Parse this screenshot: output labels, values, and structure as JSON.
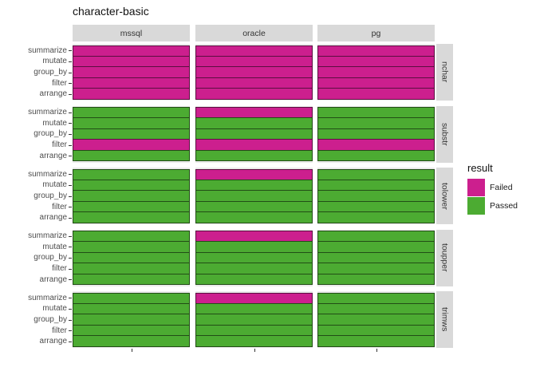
{
  "title": "character-basic",
  "facets": {
    "columns": [
      "mssql",
      "oracle",
      "pg"
    ],
    "rows": [
      "nchar",
      "substr",
      "tolower",
      "toupper",
      "trimws"
    ]
  },
  "y_axis": {
    "categories": [
      "summarize",
      "mutate",
      "group_by",
      "filter",
      "arrange"
    ]
  },
  "legend": {
    "title": "result",
    "items": [
      {
        "label": "Failed",
        "color": "#CC1F8E"
      },
      {
        "label": "Passed",
        "color": "#4CAB32"
      }
    ]
  },
  "colors": {
    "failed": "#CC1F8E",
    "passed": "#4CAB32",
    "strip_bg": "#D9D9D9",
    "panel_bg": "#EBEBEB",
    "axis_text": "#4D4D4D",
    "strip_text": "#333333"
  },
  "chart_data": {
    "type": "heatmap",
    "title": "character-basic",
    "facet_columns": [
      "mssql",
      "oracle",
      "pg"
    ],
    "facet_rows": [
      "nchar",
      "substr",
      "tolower",
      "toupper",
      "trimws"
    ],
    "y_categories": [
      "summarize",
      "mutate",
      "group_by",
      "filter",
      "arrange"
    ],
    "fill_variable": "result",
    "fill_levels": [
      "Failed",
      "Passed"
    ],
    "legend_position": "right",
    "grid": false,
    "results": {
      "nchar": {
        "mssql": [
          "Failed",
          "Failed",
          "Failed",
          "Failed",
          "Failed"
        ],
        "oracle": [
          "Failed",
          "Failed",
          "Failed",
          "Failed",
          "Failed"
        ],
        "pg": [
          "Failed",
          "Failed",
          "Failed",
          "Failed",
          "Failed"
        ]
      },
      "substr": {
        "mssql": [
          "Passed",
          "Passed",
          "Passed",
          "Failed",
          "Passed"
        ],
        "oracle": [
          "Failed",
          "Passed",
          "Passed",
          "Failed",
          "Passed"
        ],
        "pg": [
          "Passed",
          "Passed",
          "Passed",
          "Failed",
          "Passed"
        ]
      },
      "tolower": {
        "mssql": [
          "Passed",
          "Passed",
          "Passed",
          "Passed",
          "Passed"
        ],
        "oracle": [
          "Failed",
          "Passed",
          "Passed",
          "Passed",
          "Passed"
        ],
        "pg": [
          "Passed",
          "Passed",
          "Passed",
          "Passed",
          "Passed"
        ]
      },
      "toupper": {
        "mssql": [
          "Passed",
          "Passed",
          "Passed",
          "Passed",
          "Passed"
        ],
        "oracle": [
          "Failed",
          "Passed",
          "Passed",
          "Passed",
          "Passed"
        ],
        "pg": [
          "Passed",
          "Passed",
          "Passed",
          "Passed",
          "Passed"
        ]
      },
      "trimws": {
        "mssql": [
          "Passed",
          "Passed",
          "Passed",
          "Passed",
          "Passed"
        ],
        "oracle": [
          "Failed",
          "Passed",
          "Passed",
          "Passed",
          "Passed"
        ],
        "pg": [
          "Passed",
          "Passed",
          "Passed",
          "Passed",
          "Passed"
        ]
      }
    }
  }
}
